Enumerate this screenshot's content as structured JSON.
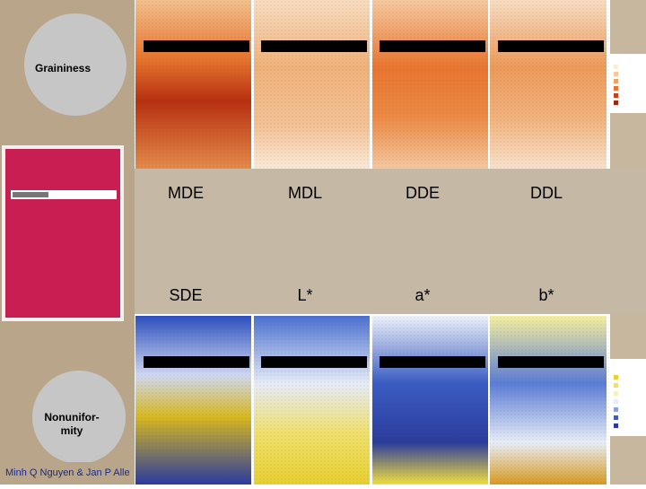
{
  "left_panel": {
    "top_circle": "Graininess",
    "bottom_circle": [
      "Nonunifor-",
      "mity"
    ]
  },
  "metrics_top": [
    "MDE",
    "MDL",
    "DDE",
    "DDL"
  ],
  "metrics_bottom": [
    "SDE",
    "L*",
    "a*",
    "b*"
  ],
  "footer": "Minh Q Nguyen & Jan P Alle"
}
